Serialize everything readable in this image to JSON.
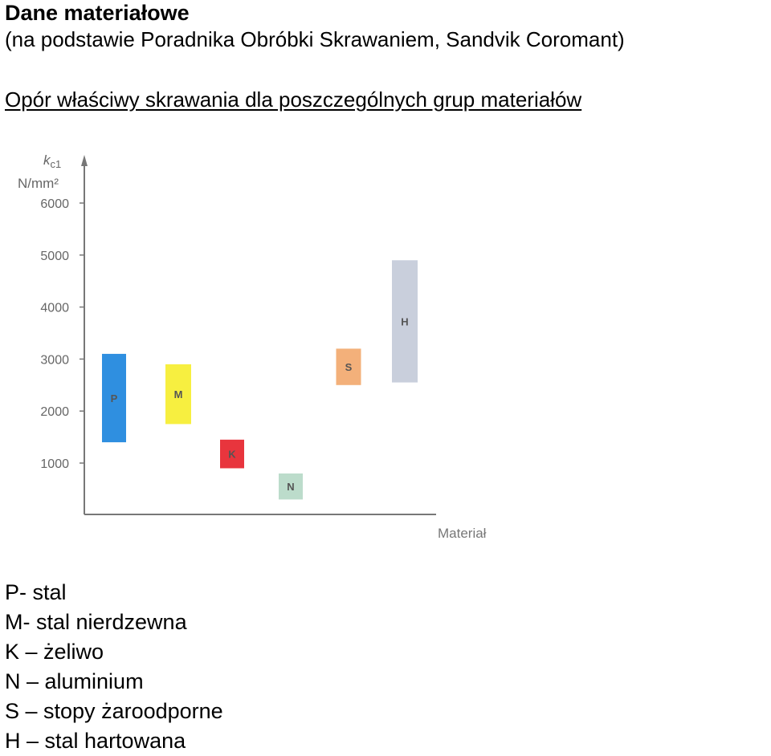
{
  "header": {
    "title": "Dane materiałowe",
    "subtitle": "(na podstawie Poradnika Obróbki Skrawaniem, Sandvik Coromant)",
    "heading": "Opór właściwy skrawania dla poszczególnych grup materiałów"
  },
  "chart_data": {
    "type": "bar",
    "subtype": "floating-range",
    "ylabel": "kc1",
    "yunit": "N/mm²",
    "xlabel": "Materiał",
    "yticks": [
      1000,
      2000,
      3000,
      4000,
      5000,
      6000
    ],
    "ylim": [
      0,
      6500
    ],
    "grid": false,
    "categories": [
      "P",
      "M",
      "K",
      "N",
      "S",
      "H"
    ],
    "ranges": [
      {
        "label": "P",
        "low": 1400,
        "high": 3100,
        "color": "#2f8fe0"
      },
      {
        "label": "M",
        "low": 1750,
        "high": 2900,
        "color": "#f7ef40"
      },
      {
        "label": "K",
        "low": 900,
        "high": 1450,
        "color": "#e8353d"
      },
      {
        "label": "N",
        "low": 300,
        "high": 800,
        "color": "#bcdccb"
      },
      {
        "label": "S",
        "low": 2500,
        "high": 3200,
        "color": "#f3b07a"
      },
      {
        "label": "H",
        "low": 2550,
        "high": 4900,
        "color": "#c9cfdc"
      }
    ]
  },
  "legend": [
    "P- stal",
    "M- stal nierdzewna",
    "K – żeliwo",
    "N – aluminium",
    "S – stopy żaroodporne",
    "H – stal hartowana"
  ]
}
